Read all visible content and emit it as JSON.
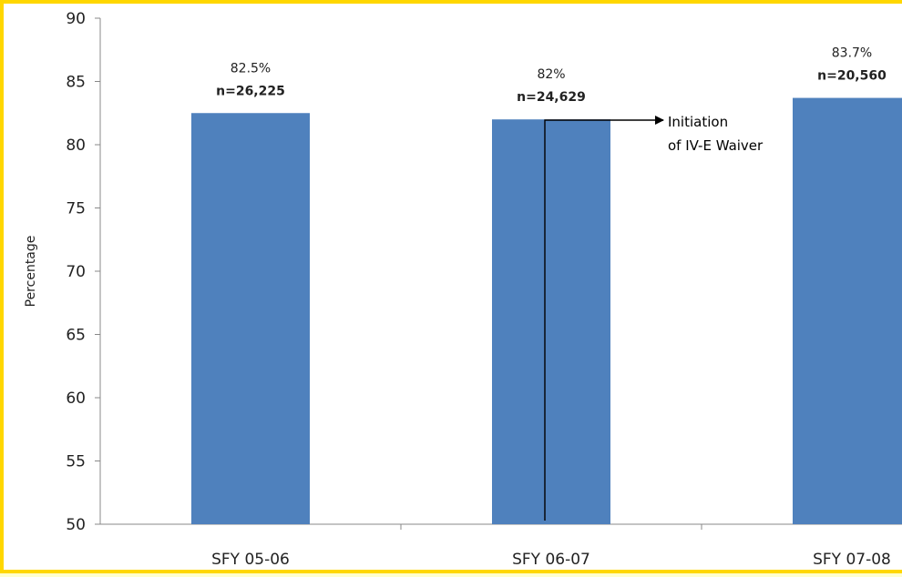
{
  "chart_data": {
    "type": "bar",
    "ylabel": "Percentage",
    "ylim": [
      50,
      90
    ],
    "yticks": [
      50,
      55,
      60,
      65,
      70,
      75,
      80,
      85,
      90
    ],
    "categories": [
      "SFY 05-06",
      "SFY 06-07",
      "SFY 07-08"
    ],
    "values": [
      82.5,
      82,
      83.7
    ],
    "data_labels": [
      {
        "pct": "82.5%",
        "n": "n=26,225"
      },
      {
        "pct": "82%",
        "n": "n=24,629"
      },
      {
        "pct": "83.7%",
        "n": "n=20,560"
      }
    ],
    "annotation": {
      "lines": [
        "Initiation",
        "of IV-E Waiver"
      ],
      "at_category_index": 1
    },
    "colors": {
      "bar": "#4f81bd",
      "page_background": "#ffffcc",
      "plot_background": "#ffffff",
      "border": "#ffd700",
      "axis": "#888888",
      "text": "#222222",
      "annotation": "#000000"
    },
    "grid": false
  }
}
